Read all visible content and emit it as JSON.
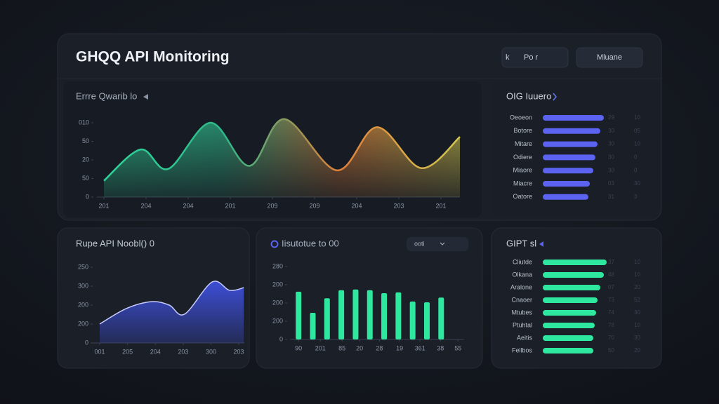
{
  "header": {
    "title": "GHQQ API Monitoring",
    "buttons": [
      {
        "icon": "k",
        "label": "Po r"
      },
      {
        "label": "Mluane"
      }
    ]
  },
  "chart_data": [
    {
      "type": "area",
      "title": "Errre Qwarib lo",
      "x": [
        0,
        0.87,
        1.53,
        2.53,
        3.45,
        4.28,
        5.53,
        6.48,
        7.53,
        8.45
      ],
      "values": [
        22,
        64,
        38,
        100,
        42,
        105,
        36,
        94,
        39,
        81
      ],
      "xlim": [
        0,
        8.45
      ],
      "ylim": [
        0,
        110
      ],
      "xticks": [
        {
          "value": 0,
          "label": "201"
        },
        {
          "value": 1,
          "label": "204"
        },
        {
          "value": 2,
          "label": "204"
        },
        {
          "value": 3,
          "label": "201"
        },
        {
          "value": 4,
          "label": "209"
        },
        {
          "value": 5,
          "label": "209"
        },
        {
          "value": 6,
          "label": "204"
        },
        {
          "value": 7,
          "label": "203"
        },
        {
          "value": 8,
          "label": "201"
        }
      ],
      "yticks": [
        0,
        {
          "value": 25,
          "label": "50"
        },
        {
          "value": 50,
          "label": "20"
        },
        {
          "value": 75,
          "label": "50"
        },
        {
          "value": 100,
          "label": "010"
        }
      ],
      "colors": [
        "#2fd69a",
        "#2fb889",
        "#e0803a",
        "#d2c850"
      ]
    },
    {
      "type": "hbar",
      "title": "OIG Iuuero",
      "categories": [
        "Oeoeon",
        "Botore",
        "Mitare",
        "Odiere",
        "Miaore",
        "Miacre",
        "Oatore"
      ],
      "values": [
        87,
        82,
        78,
        75,
        72,
        67,
        65
      ],
      "xlim": [
        0,
        100
      ],
      "color": "#5b63f0",
      "stats": [
        [
          "29",
          "10"
        ],
        [
          "30",
          "05"
        ],
        [
          "30",
          "10"
        ],
        [
          "30",
          "0"
        ],
        [
          "30",
          "0"
        ],
        [
          "03",
          "30"
        ],
        [
          "31",
          "3"
        ]
      ]
    },
    {
      "type": "area",
      "title": "Rupe API Noobl() 0",
      "x": [
        0,
        0.96,
        1.86,
        2.5,
        3.05,
        4.04,
        4.67,
        5.18
      ],
      "values": [
        50,
        91,
        109,
        100,
        76,
        161,
        139,
        146
      ],
      "xlim": [
        0,
        5.2
      ],
      "ylim": [
        0,
        200
      ],
      "xticks": [
        {
          "value": 0,
          "label": "001"
        },
        {
          "value": 1,
          "label": "205"
        },
        {
          "value": 2,
          "label": "204"
        },
        {
          "value": 3,
          "label": "203"
        },
        {
          "value": 4,
          "label": "300"
        },
        {
          "value": 5,
          "label": "203"
        }
      ],
      "yticks": [
        0,
        {
          "value": 50,
          "label": "200"
        },
        {
          "value": 100,
          "label": "200"
        },
        {
          "value": 150,
          "label": "300"
        },
        {
          "value": 200,
          "label": "250"
        }
      ],
      "colors": [
        "#3f51e0"
      ]
    },
    {
      "type": "bar",
      "title": "Iisutotue to 00",
      "dropdown": "ooti",
      "x": [
        0,
        1,
        2,
        3,
        4,
        5,
        6,
        7,
        8,
        9,
        10
      ],
      "values": [
        131,
        73,
        113,
        135,
        137,
        135,
        127,
        129,
        104,
        102,
        115
      ],
      "xlim": [
        -0.6,
        11.6
      ],
      "ylim": [
        0,
        200
      ],
      "color": "#2ee8a0",
      "xticks": [
        {
          "value": 0,
          "label": "90"
        },
        {
          "value": 1.53,
          "label": "201"
        },
        {
          "value": 3.05,
          "label": "85"
        },
        {
          "value": 4.28,
          "label": "20"
        },
        {
          "value": 5.67,
          "label": "28"
        },
        {
          "value": 7.09,
          "label": "19"
        },
        {
          "value": 8.52,
          "label": "361"
        },
        {
          "value": 9.95,
          "label": "38"
        },
        {
          "value": 11.18,
          "label": "55"
        }
      ],
      "yticks": [
        0,
        {
          "value": 50,
          "label": "200"
        },
        {
          "value": 100,
          "label": "200"
        },
        {
          "value": 150,
          "label": "200"
        },
        {
          "value": 200,
          "label": "280"
        }
      ]
    },
    {
      "type": "hbar",
      "title": "GIPT sl",
      "categories": [
        "Cliutde",
        "Olkana",
        "Aralone",
        "Cnaoer",
        "Mtubes",
        "Ptuhtal",
        "Aeitis",
        "Fellbos"
      ],
      "values": [
        91,
        87,
        82,
        78,
        76,
        74,
        72,
        72
      ],
      "xlim": [
        0,
        100
      ],
      "color": "#2ee8a0",
      "stats": [
        [
          "37",
          "10"
        ],
        [
          "48",
          "10"
        ],
        [
          "07",
          "20"
        ],
        [
          "73",
          "52"
        ],
        [
          "74",
          "30"
        ],
        [
          "78",
          "10"
        ],
        [
          "70",
          "30"
        ],
        [
          "50",
          "20"
        ]
      ]
    }
  ]
}
